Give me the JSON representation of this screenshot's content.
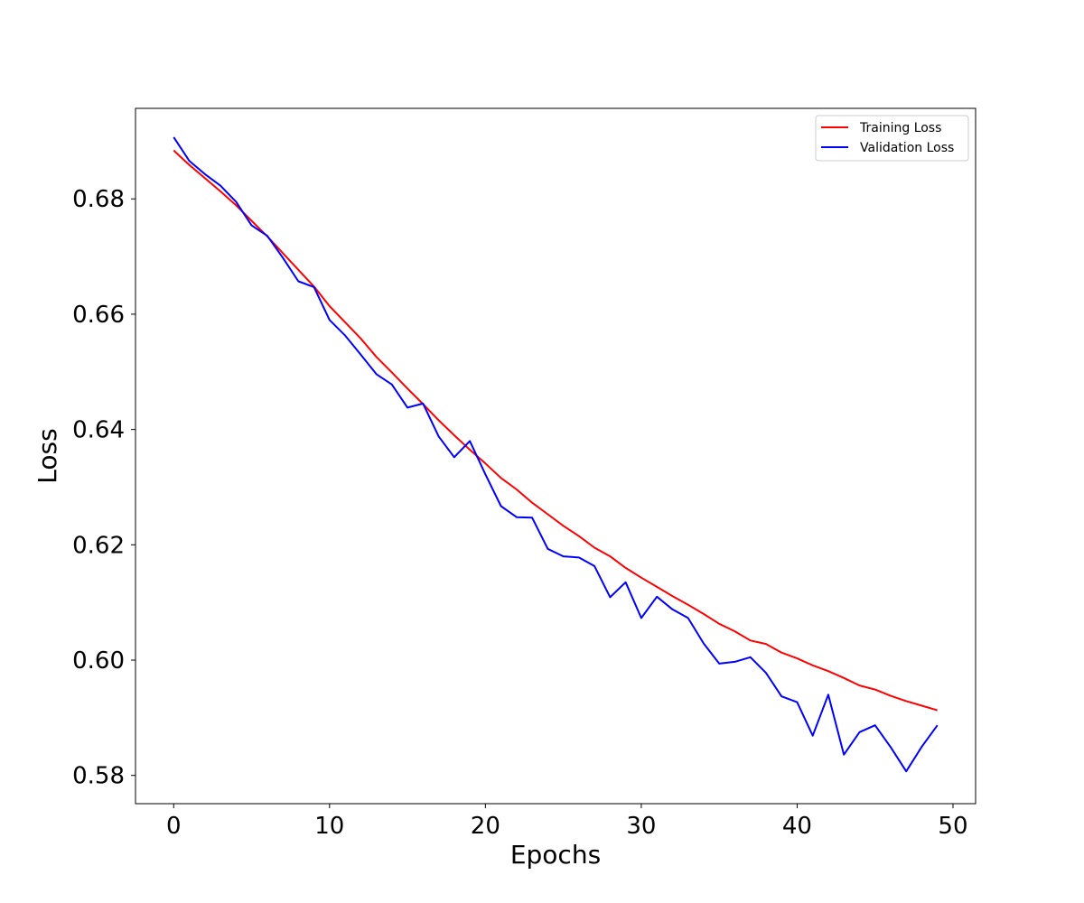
{
  "chart_data": {
    "type": "line",
    "title": "",
    "xlabel": "Epochs",
    "ylabel": "Loss",
    "xlim": [
      -2.45,
      51.45
    ],
    "ylim": [
      0.5751,
      0.6957
    ],
    "xticks": [
      0,
      10,
      20,
      30,
      40,
      50
    ],
    "xtick_labels": [
      "0",
      "10",
      "20",
      "30",
      "40",
      "50"
    ],
    "yticks": [
      0.58,
      0.6,
      0.62,
      0.64,
      0.66,
      0.68
    ],
    "ytick_labels": [
      "0.58",
      "0.60",
      "0.62",
      "0.64",
      "0.66",
      "0.68"
    ],
    "grid": false,
    "legend_position": "top-right",
    "x": [
      0,
      1,
      2,
      3,
      4,
      5,
      6,
      7,
      8,
      9,
      10,
      11,
      12,
      13,
      14,
      15,
      16,
      17,
      18,
      19,
      20,
      21,
      22,
      23,
      24,
      25,
      26,
      27,
      28,
      29,
      30,
      31,
      32,
      33,
      34,
      35,
      36,
      37,
      38,
      39,
      40,
      41,
      42,
      43,
      44,
      45,
      46,
      47,
      48,
      49
    ],
    "series": [
      {
        "name": "Training Loss",
        "color": "#ff0000",
        "values": [
          0.6884,
          0.6859,
          0.6836,
          0.6813,
          0.6789,
          0.6762,
          0.6735,
          0.6706,
          0.6677,
          0.6648,
          0.6614,
          0.6586,
          0.6558,
          0.6526,
          0.6499,
          0.6471,
          0.6444,
          0.6416,
          0.639,
          0.6365,
          0.6341,
          0.6316,
          0.6296,
          0.6273,
          0.6253,
          0.6233,
          0.6215,
          0.6195,
          0.618,
          0.616,
          0.6143,
          0.6127,
          0.6111,
          0.6096,
          0.608,
          0.6063,
          0.605,
          0.6034,
          0.6028,
          0.6013,
          0.6003,
          0.5991,
          0.5981,
          0.5969,
          0.5956,
          0.5949,
          0.5938,
          0.5929,
          0.5921,
          0.5913
        ]
      },
      {
        "name": "Validation Loss",
        "color": "#0000ff",
        "values": [
          0.6907,
          0.6866,
          0.6843,
          0.6823,
          0.6795,
          0.6754,
          0.6736,
          0.6698,
          0.6657,
          0.6647,
          0.659,
          0.6563,
          0.653,
          0.6496,
          0.6478,
          0.6438,
          0.6445,
          0.6388,
          0.6352,
          0.638,
          0.6322,
          0.6267,
          0.6248,
          0.6247,
          0.6193,
          0.618,
          0.6178,
          0.6163,
          0.6109,
          0.6135,
          0.6073,
          0.611,
          0.6088,
          0.6073,
          0.6029,
          0.5994,
          0.5997,
          0.6005,
          0.5978,
          0.5937,
          0.5927,
          0.5869,
          0.594,
          0.5836,
          0.5875,
          0.5887,
          0.5849,
          0.5807,
          0.585,
          0.5887
        ]
      }
    ]
  }
}
